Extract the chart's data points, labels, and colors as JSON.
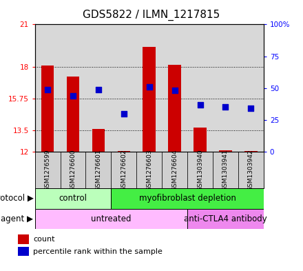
{
  "title": "GDS5822 / ILMN_1217815",
  "samples": [
    "GSM1276599",
    "GSM1276600",
    "GSM1276601",
    "GSM1276602",
    "GSM1276603",
    "GSM1276604",
    "GSM1303940",
    "GSM1303941",
    "GSM1303942"
  ],
  "count_values": [
    18.1,
    17.3,
    13.6,
    12.05,
    19.4,
    18.15,
    13.7,
    12.1,
    12.05
  ],
  "count_base": 12.0,
  "percentile_values": [
    49,
    44,
    49,
    30,
    51,
    48,
    37,
    35,
    34
  ],
  "ylim_left": [
    12,
    21
  ],
  "ylim_right": [
    0,
    100
  ],
  "yticks_left": [
    12,
    13.5,
    15.75,
    18,
    21
  ],
  "yticks_right": [
    0,
    25,
    50,
    75,
    100
  ],
  "ytick_labels_left": [
    "12",
    "13.5",
    "15.75",
    "18",
    "21"
  ],
  "ytick_labels_right": [
    "0",
    "25",
    "50",
    "75",
    "100%"
  ],
  "bar_color": "#cc0000",
  "dot_color": "#0000cc",
  "bar_width": 0.5,
  "dot_size": 30,
  "protocol_groups": [
    {
      "label": "control",
      "start": 0,
      "end": 3,
      "color": "#bbffbb"
    },
    {
      "label": "myofibroblast depletion",
      "start": 3,
      "end": 9,
      "color": "#44ee44"
    }
  ],
  "agent_groups": [
    {
      "label": "untreated",
      "start": 0,
      "end": 6,
      "color": "#ffbbff"
    },
    {
      "label": "anti-CTLA4 antibody",
      "start": 6,
      "end": 9,
      "color": "#ee88ee"
    }
  ],
  "legend_count_label": "count",
  "legend_pct_label": "percentile rank within the sample",
  "plot_bg_color": "#d8d8d8",
  "sample_box_color": "#d0d0d0",
  "title_fontsize": 11,
  "tick_fontsize": 7.5,
  "sample_fontsize": 6.5,
  "row_label_fontsize": 8.5,
  "legend_fontsize": 8
}
